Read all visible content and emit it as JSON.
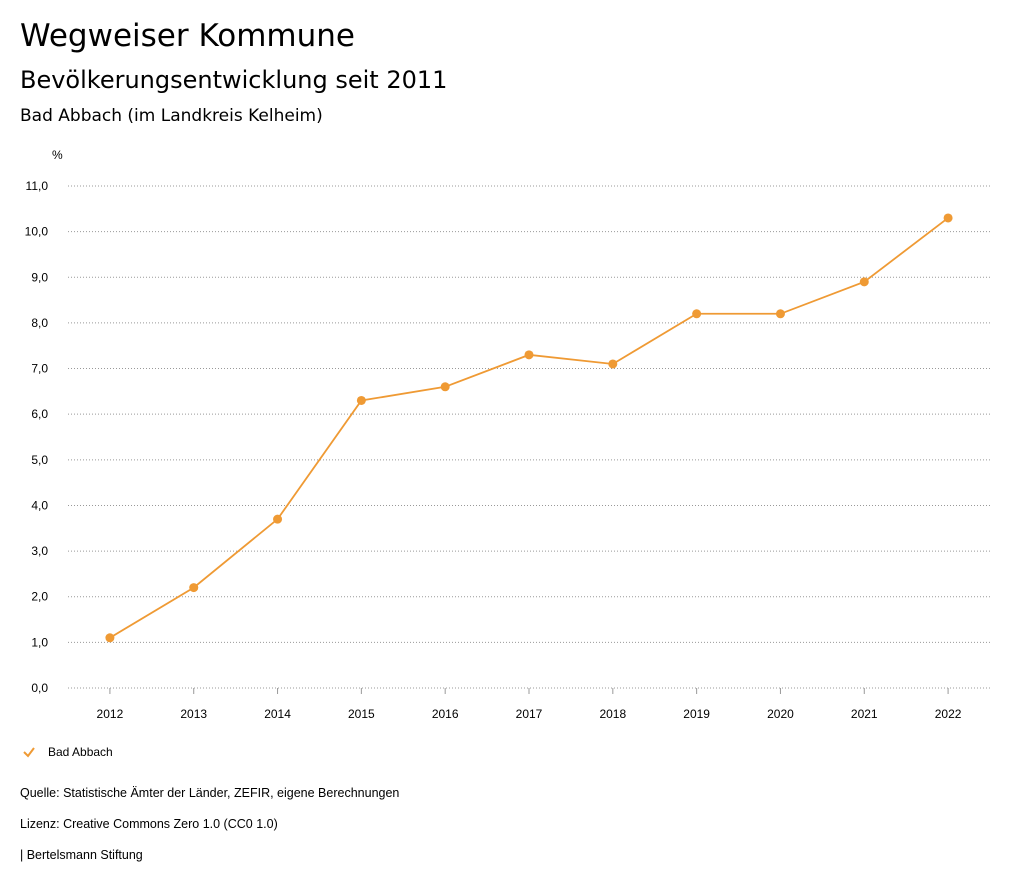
{
  "header": {
    "title": "Wegweiser Kommune",
    "subtitle": "Bevölkerungsentwicklung seit 2011",
    "region": "Bad Abbach (im Landkreis Kelheim)"
  },
  "chart_data": {
    "type": "line",
    "ylabel": "%",
    "ylim": [
      0,
      11
    ],
    "yticks": [
      "0,0",
      "1,0",
      "2,0",
      "3,0",
      "4,0",
      "5,0",
      "6,0",
      "7,0",
      "8,0",
      "9,0",
      "10,0",
      "11,0"
    ],
    "categories": [
      "2012",
      "2013",
      "2014",
      "2015",
      "2016",
      "2017",
      "2018",
      "2019",
      "2020",
      "2021",
      "2022"
    ],
    "series": [
      {
        "name": "Bad Abbach",
        "color": "#ef9a34",
        "values": [
          1.1,
          2.2,
          3.7,
          6.3,
          6.6,
          7.3,
          7.1,
          8.2,
          8.2,
          8.9,
          10.3
        ]
      }
    ],
    "grid": true,
    "legend": "bottom-left"
  },
  "footer": {
    "source": "Quelle: Statistische Ämter der Länder, ZEFIR, eigene Berechnungen",
    "license": "Lizenz: Creative Commons Zero 1.0 (CC0 1.0)",
    "publisher": "| Bertelsmann Stiftung"
  }
}
